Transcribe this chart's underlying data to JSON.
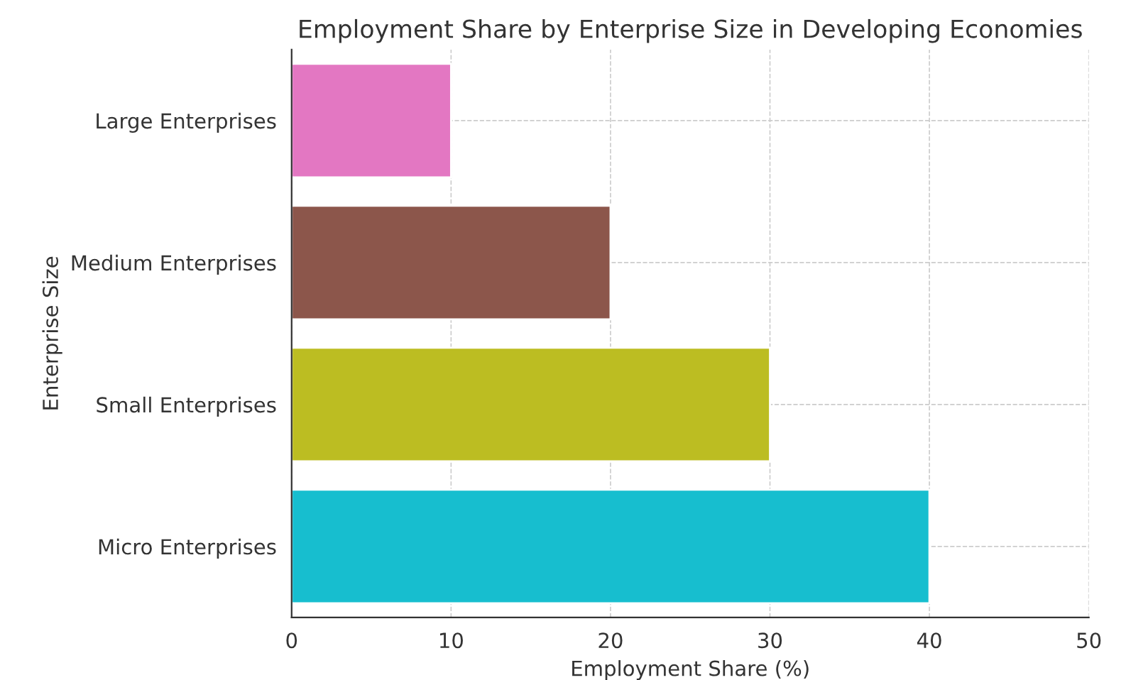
{
  "chart_data": {
    "type": "bar",
    "orientation": "horizontal",
    "title": "Employment Share by Enterprise Size in Developing Economies",
    "xlabel": "Employment Share (%)",
    "ylabel": "Enterprise Size",
    "categories": [
      "Large Enterprises",
      "Medium Enterprises",
      "Small Enterprises",
      "Micro Enterprises"
    ],
    "values": [
      10,
      20,
      30,
      40
    ],
    "colors": [
      "#e377c2",
      "#8c564b",
      "#bcbd22",
      "#17becf"
    ],
    "xlim": [
      0,
      50
    ],
    "xticks": [
      0,
      10,
      20,
      30,
      40,
      50
    ],
    "grid": true
  }
}
